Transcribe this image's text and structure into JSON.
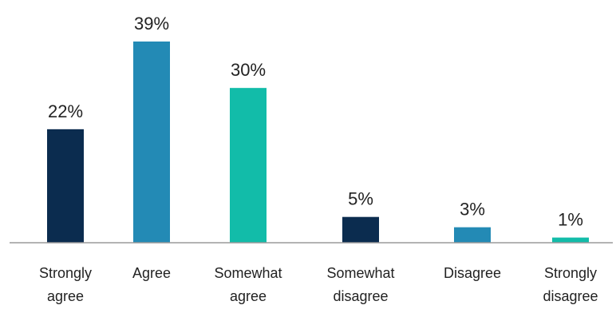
{
  "chart_data": {
    "type": "bar",
    "categories": [
      [
        "Strongly",
        "agree"
      ],
      [
        "Agree"
      ],
      [
        "Somewhat",
        "agree"
      ],
      [
        "Somewhat",
        "disagree"
      ],
      [
        "Disagree"
      ],
      [
        "Strongly",
        "disagree"
      ]
    ],
    "values": [
      22,
      39,
      30,
      5,
      3,
      1
    ],
    "value_labels": [
      "22%",
      "39%",
      "30%",
      "5%",
      "3%",
      "1%"
    ],
    "colors": [
      "#0b2c4f",
      "#238ab5",
      "#12bca9",
      "#0b2c4f",
      "#238ab5",
      "#12bca9"
    ],
    "ylim": [
      0,
      39
    ],
    "axis_color": "#9a9a9a",
    "grid": false,
    "legend": "none"
  }
}
